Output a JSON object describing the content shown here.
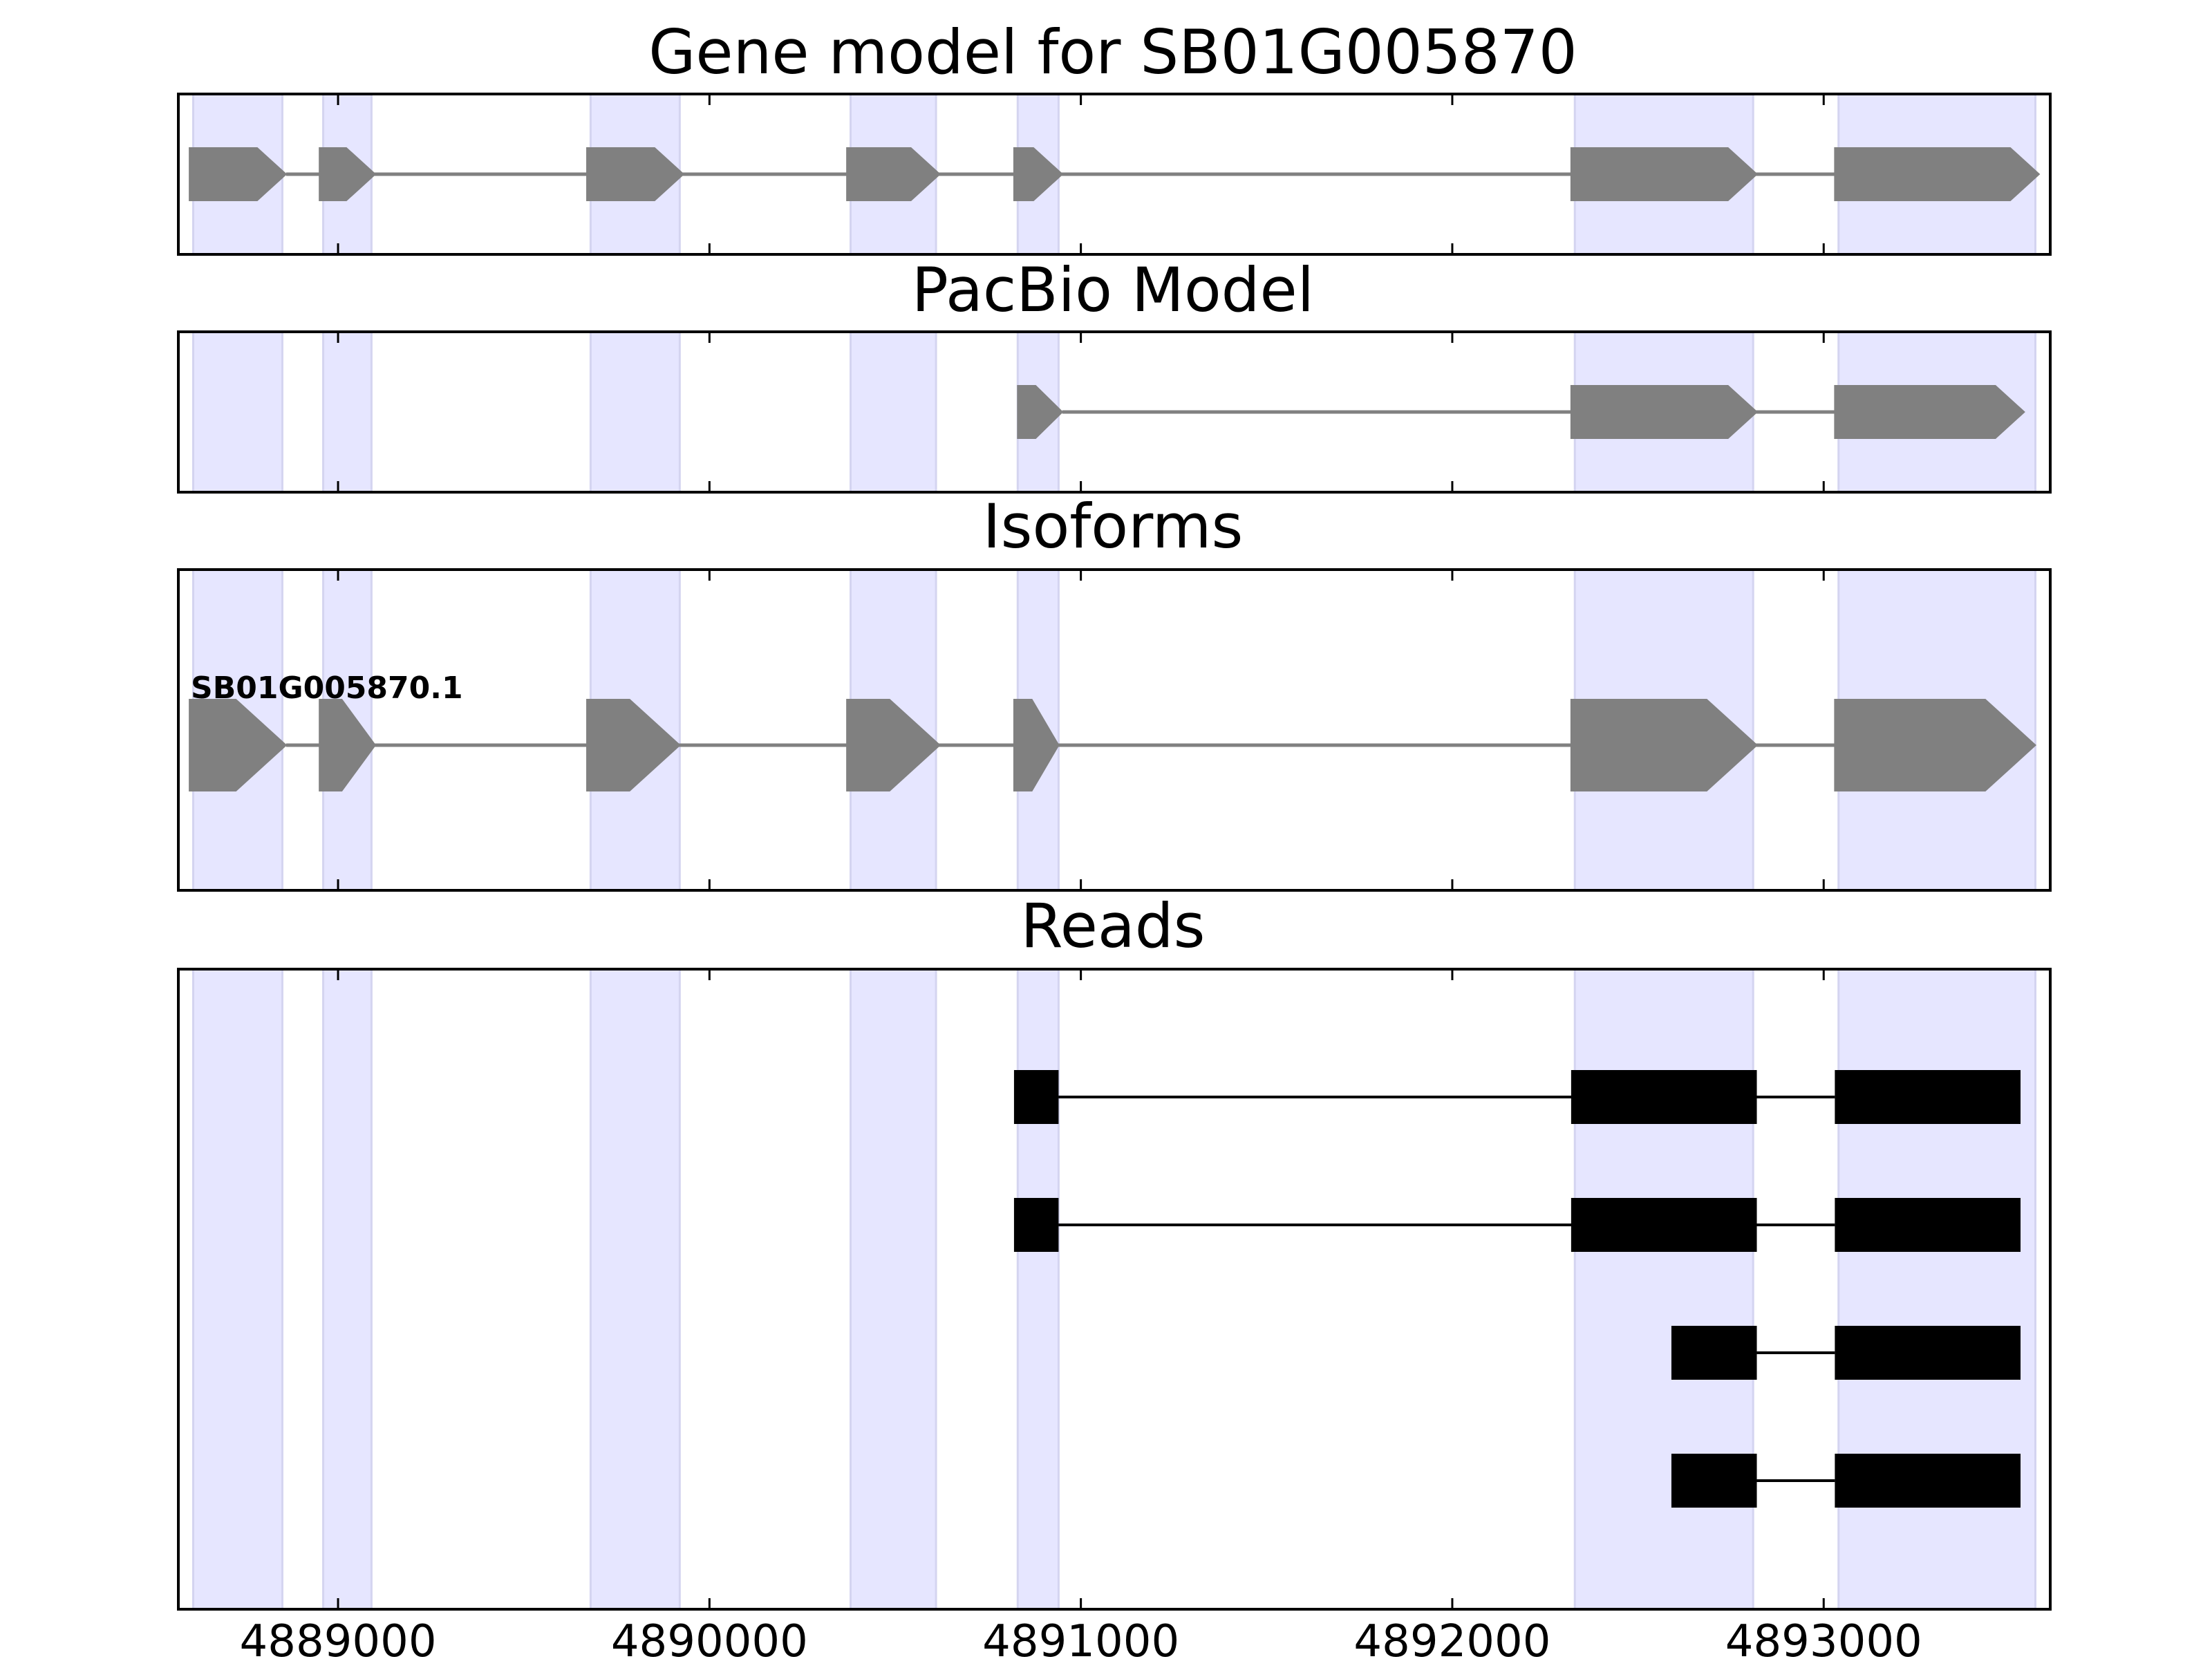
{
  "chart_data": {
    "type": "gene-track",
    "x_range": [
      4888570,
      4893610
    ],
    "x_ticks": [
      4889000,
      4890000,
      4891000,
      4892000,
      4893000
    ],
    "x_tick_labels": [
      "4889000",
      "4890000",
      "4891000",
      "4892000",
      "4893000"
    ],
    "highlight_color": "#e6e6ff",
    "highlight_regions": [
      [
        4888610,
        4888850
      ],
      [
        4888960,
        4889090
      ],
      [
        4889680,
        4889920
      ],
      [
        4890380,
        4890610
      ],
      [
        4890830,
        4890940
      ],
      [
        4892330,
        4892810
      ],
      [
        4893040,
        4893570
      ]
    ],
    "panels": [
      {
        "id": "gene-model",
        "title": "Gene model for SB01G005870",
        "color": "#808080",
        "strand": "+",
        "exons": [
          [
            4888600,
            4888860
          ],
          [
            4888950,
            4889100
          ],
          [
            4889670,
            4889930
          ],
          [
            4890370,
            4890620
          ],
          [
            4890820,
            4890950
          ],
          [
            4892320,
            4892820
          ],
          [
            4893030,
            4893580
          ]
        ]
      },
      {
        "id": "pacbio-model",
        "title": "PacBio Model",
        "color": "#808080",
        "strand": "+",
        "exons": [
          [
            4890830,
            4890950
          ],
          [
            4892320,
            4892820
          ],
          [
            4893030,
            4893540
          ]
        ]
      },
      {
        "id": "isoforms",
        "title": "Isoforms",
        "color": "#808080",
        "strand": "+",
        "isoform_label": "SB01G005870.1",
        "exons": [
          [
            4888600,
            4888860
          ],
          [
            4888950,
            4889100
          ],
          [
            4889670,
            4889920
          ],
          [
            4890370,
            4890620
          ],
          [
            4890820,
            4890940
          ],
          [
            4892320,
            4892820
          ],
          [
            4893030,
            4893570
          ]
        ]
      },
      {
        "id": "reads",
        "title": "Reads",
        "color": "#000000",
        "reads": [
          [
            [
              4890820,
              4890940
            ],
            [
              4892320,
              4892820
            ],
            [
              4893030,
              4893530
            ]
          ],
          [
            [
              4890820,
              4890940
            ],
            [
              4892320,
              4892820
            ],
            [
              4893030,
              4893530
            ]
          ],
          [
            [
              4892590,
              4892820
            ],
            [
              4893030,
              4893530
            ]
          ],
          [
            [
              4892590,
              4892820
            ],
            [
              4893030,
              4893530
            ]
          ]
        ]
      }
    ]
  }
}
